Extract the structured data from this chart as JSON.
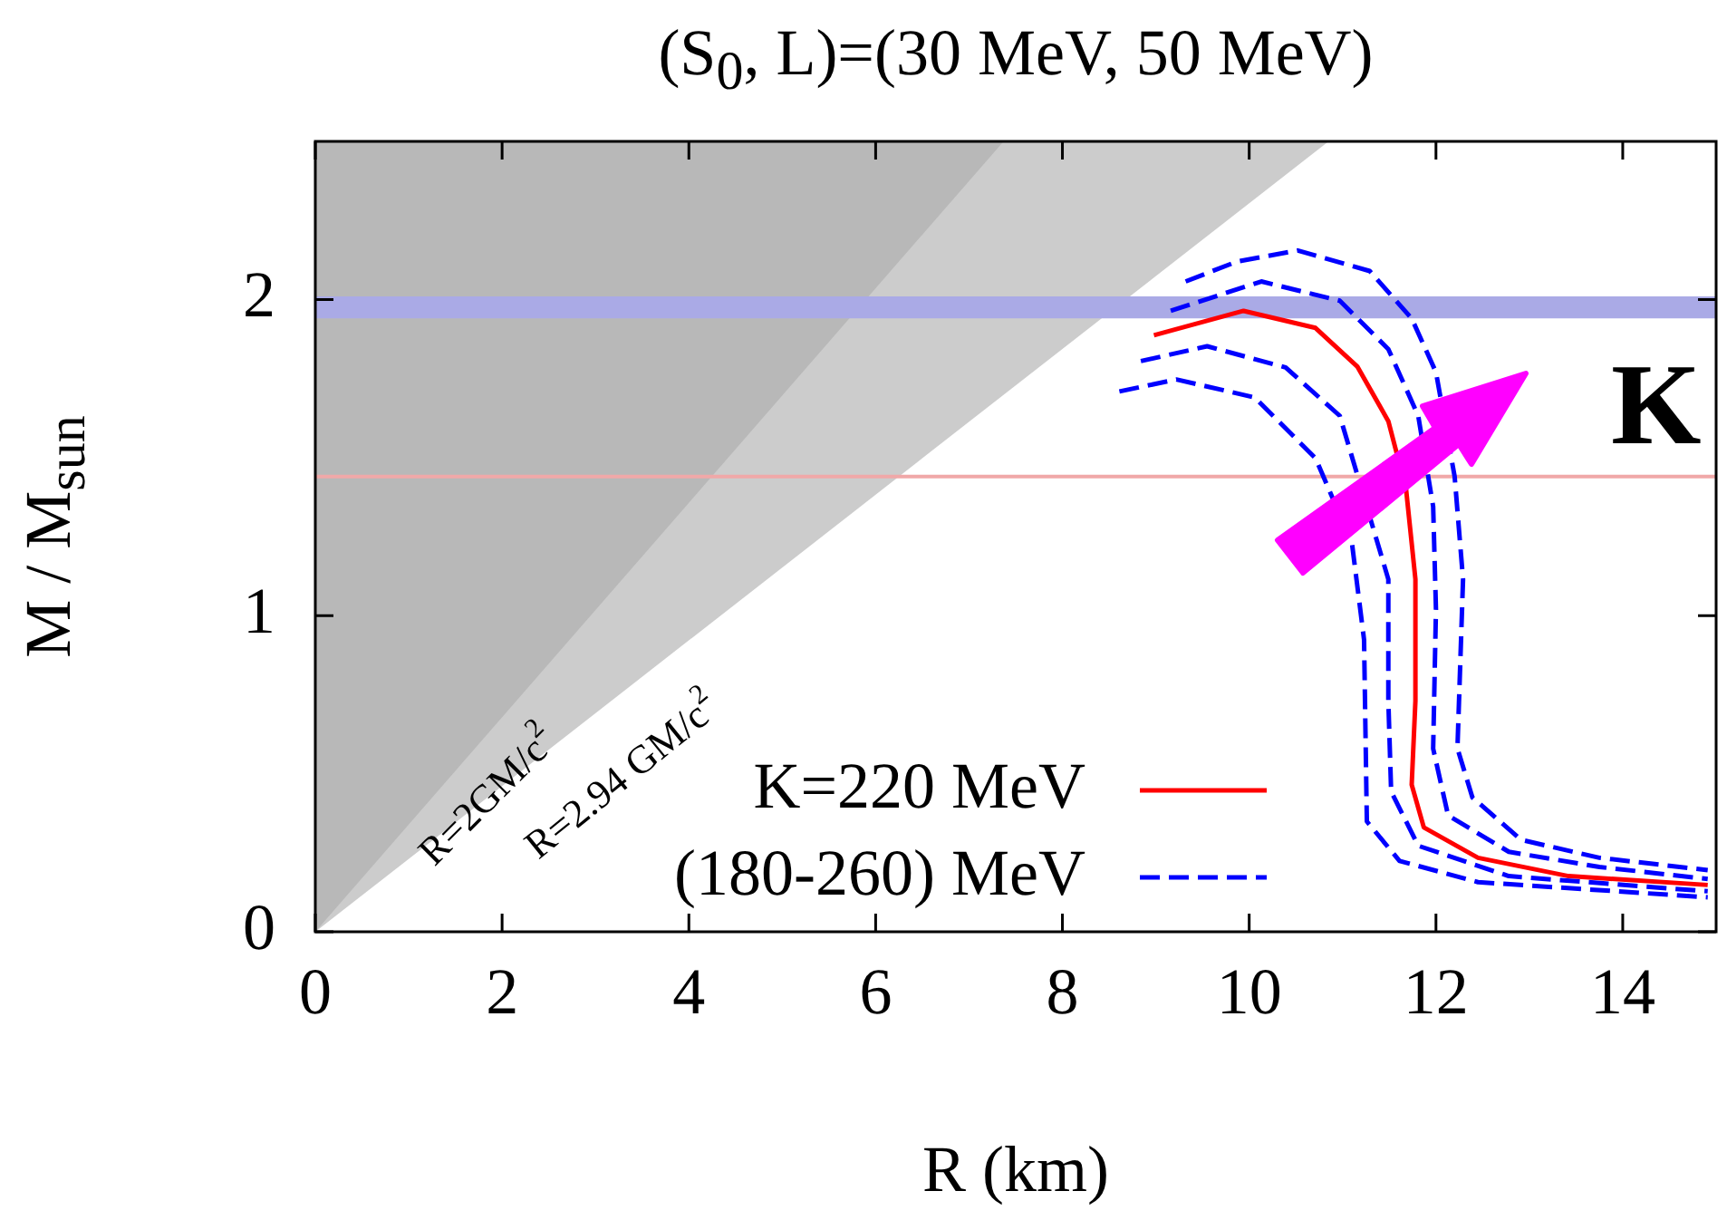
{
  "chart_data": {
    "type": "line",
    "title": "(S$_{0}$, L)=(30 MeV, 50 MeV)",
    "xlabel": "R (km)",
    "ylabel": "M / M$_{sun}$",
    "xlim": [
      0,
      15
    ],
    "xticks": [
      0,
      2,
      4,
      6,
      8,
      10,
      12,
      14
    ],
    "ylim": [
      0,
      2.5
    ],
    "yticks": [
      0,
      1,
      2
    ],
    "grid": false,
    "legend": "bottom",
    "marker": "none",
    "series": [
      {
        "type": "area",
        "color": "#cccccc",
        "x": [
          0,
          10.85
        ],
        "values": [
          0,
          2.5
        ]
      },
      {
        "type": "area",
        "color": "#b8b8b8",
        "x": [
          0,
          7.37
        ],
        "values": [
          0,
          2.5
        ]
      },
      {
        "name": "K=220 MeV",
        "color": "#ff0000",
        "line_style": "solid",
        "x": [
          8.98,
          9.94,
          10.71,
          11.16,
          11.49,
          11.68,
          11.78,
          11.78,
          11.74,
          11.87,
          12.45,
          13.42,
          14.91
        ],
        "values": [
          1.887,
          1.964,
          1.91,
          1.787,
          1.615,
          1.4,
          1.115,
          0.73,
          0.465,
          0.33,
          0.234,
          0.176,
          0.148
        ]
      },
      {
        "name": "(180-260) MeV",
        "color": "#0000ff",
        "line_style": "dashed",
        "x": [
          8.61,
          9.22,
          10.06,
          10.71,
          11.1,
          11.23,
          11.26,
          11.61,
          12.45,
          14.91
        ],
        "values": [
          1.709,
          1.747,
          1.69,
          1.498,
          1.23,
          0.924,
          0.349,
          0.224,
          0.157,
          0.109
        ]
      },
      {
        "color": "#0000ff",
        "line_style": "dashed",
        "x": [
          8.84,
          9.55,
          10.39,
          10.97,
          11.49,
          11.49,
          11.52,
          11.81,
          12.78,
          14.91
        ],
        "values": [
          1.805,
          1.852,
          1.785,
          1.632,
          1.115,
          0.73,
          0.444,
          0.272,
          0.176,
          0.128
        ]
      },
      {
        "color": "#0000ff",
        "line_style": "dashed",
        "x": [
          9.16,
          10.13,
          10.97,
          11.49,
          11.81,
          11.97,
          12.0,
          11.97,
          12.13,
          12.78,
          13.75,
          14.91
        ],
        "values": [
          1.964,
          2.057,
          1.996,
          1.843,
          1.632,
          1.345,
          1.02,
          0.579,
          0.368,
          0.253,
          0.205,
          0.167
        ]
      },
      {
        "color": "#0000ff",
        "line_style": "dashed",
        "x": [
          9.32,
          9.87,
          10.52,
          11.29,
          11.74,
          12.0,
          12.2,
          12.29,
          12.23,
          12.39,
          12.91,
          13.75,
          14.91
        ],
        "values": [
          2.057,
          2.12,
          2.155,
          2.09,
          1.94,
          1.77,
          1.44,
          1.115,
          0.58,
          0.425,
          0.291,
          0.234,
          0.195
        ]
      }
    ],
    "bands": [
      {
        "axis": "y",
        "from": 1.94,
        "to": 2.01,
        "color": "#aaaae6"
      }
    ],
    "ref_lines": [
      {
        "axis": "y",
        "value": 1.44,
        "color": "#f0a8a8",
        "line_style": "solid"
      }
    ],
    "annotations": [
      "R=2GM/c$^{2}$",
      "R=2.94 GM/c$^{2}$",
      "K"
    ]
  }
}
